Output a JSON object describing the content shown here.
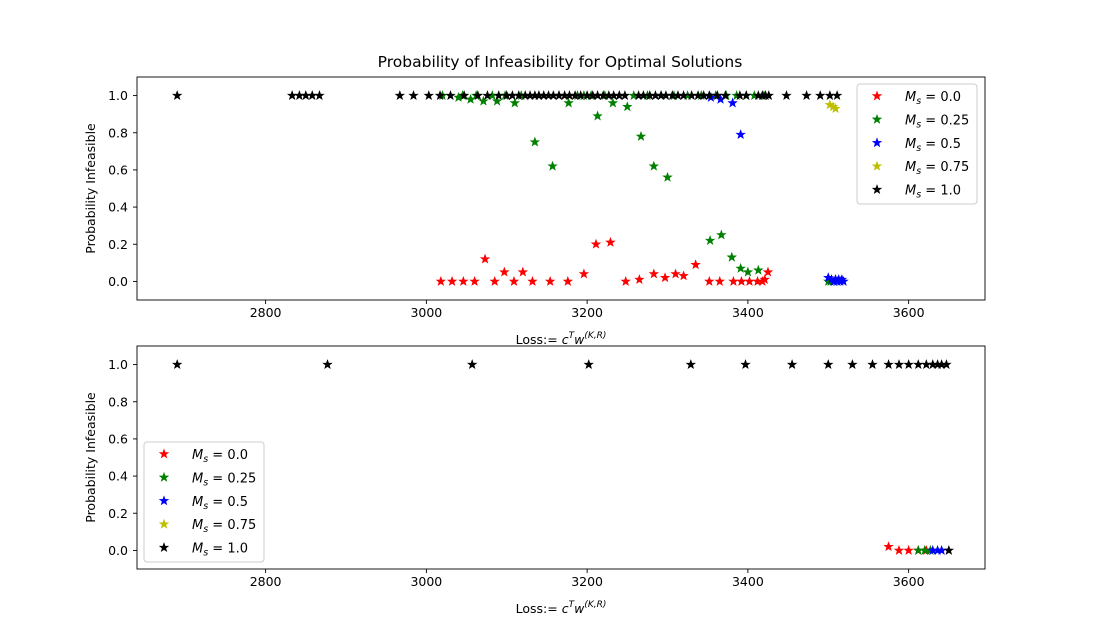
{
  "title": "Probability of Infeasibility for Optimal Solutions",
  "chart_data": [
    {
      "type": "scatter",
      "marker": "star",
      "xlabel_prefix": "Loss:= ",
      "xlabel_math": "c^T w^(K,R)",
      "ylabel": "Probability Infeasible",
      "xlim": [
        2640,
        3695
      ],
      "ylim": [
        -0.1,
        1.1
      ],
      "xticks": [
        2800,
        3000,
        3200,
        3400,
        3600
      ],
      "yticks": [
        0.0,
        0.2,
        0.4,
        0.6,
        0.8,
        1.0
      ],
      "xtick_labels": [
        "2800",
        "3000",
        "3200",
        "3400",
        "3600"
      ],
      "ytick_labels": [
        "0.0",
        "0.2",
        "0.4",
        "0.6",
        "0.8",
        "1.0"
      ],
      "legend_position": "upper right",
      "series": [
        {
          "name": "M_s = 0.0",
          "symbol": "M",
          "sub": "s",
          "value": "0.0",
          "color": "#ff0000",
          "x": [
            3018,
            3032,
            3046,
            3060,
            3073,
            3085,
            3097,
            3109,
            3120,
            3132,
            3154,
            3176,
            3196,
            3211,
            3229,
            3248,
            3265,
            3283,
            3297,
            3310,
            3320,
            3335,
            3352,
            3365,
            3382,
            3392,
            3402,
            3412,
            3418,
            3421,
            3425
          ],
          "y": [
            0.0,
            0.0,
            0.0,
            0.0,
            0.12,
            0.0,
            0.05,
            0.0,
            0.05,
            0.0,
            0.0,
            0.0,
            0.04,
            0.2,
            0.21,
            0.0,
            0.01,
            0.04,
            0.02,
            0.04,
            0.03,
            0.09,
            0.0,
            0.0,
            0.0,
            0.0,
            0.0,
            0.0,
            0.0,
            0.01,
            0.05
          ]
        },
        {
          "name": "M_s = 0.25",
          "symbol": "M",
          "sub": "s",
          "value": "0.25",
          "color": "#008000",
          "x": [
            3040,
            3055,
            3071,
            3088,
            3110,
            3135,
            3157,
            3177,
            3196,
            3213,
            3232,
            3250,
            3267,
            3283,
            3300,
            3353,
            3367,
            3380,
            3391,
            3400,
            3413,
            3500,
            3503,
            3507
          ],
          "y": [
            0.99,
            0.98,
            0.97,
            0.97,
            0.96,
            0.75,
            0.62,
            0.96,
            1.0,
            0.89,
            0.96,
            0.94,
            0.78,
            0.62,
            0.56,
            0.22,
            0.25,
            0.13,
            0.07,
            0.05,
            0.06,
            0.0,
            0.0,
            0.0
          ],
          "overlap_x": [
            3020,
            3045,
            3062,
            3082,
            3098,
            3118,
            3140,
            3165,
            3188,
            3205,
            3222,
            3240,
            3258,
            3275,
            3292,
            3308,
            3325,
            3342,
            3360,
            3373,
            3386,
            3398,
            3408,
            3420
          ],
          "overlap_y": [
            1.0,
            1.0,
            1.0,
            1.0,
            1.0,
            1.0,
            1.0,
            1.0,
            1.0,
            1.0,
            1.0,
            1.0,
            1.0,
            1.0,
            1.0,
            1.0,
            1.0,
            1.0,
            1.0,
            1.0,
            1.0,
            1.0,
            1.0,
            1.0
          ]
        },
        {
          "name": "M_s = 0.5",
          "symbol": "M",
          "sub": "s",
          "value": "0.5",
          "color": "#0000ff",
          "x": [
            3354,
            3366,
            3381,
            3391,
            3500,
            3504,
            3507,
            3509,
            3511,
            3513,
            3515,
            3517,
            3519
          ],
          "y": [
            0.99,
            0.98,
            0.96,
            0.79,
            0.02,
            0.01,
            0.0,
            0.01,
            0.0,
            0.01,
            0.0,
            0.01,
            0.0
          ]
        },
        {
          "name": "M_s = 0.75",
          "symbol": "M",
          "sub": "s",
          "value": "0.75",
          "color": "#bfbf00",
          "x": [
            3502,
            3506,
            3509
          ],
          "y": [
            0.95,
            0.94,
            0.93
          ]
        },
        {
          "name": "M_s = 1.0",
          "symbol": "M",
          "sub": "s",
          "value": "1.0",
          "color": "#000000",
          "x": [
            2690,
            2833,
            2842,
            2850,
            2858,
            2867,
            2967,
            2984,
            3003,
            3017,
            3030,
            3047,
            3064,
            3076,
            3090,
            3100,
            3107,
            3115,
            3123,
            3129,
            3135,
            3140,
            3146,
            3152,
            3158,
            3165,
            3172,
            3178,
            3185,
            3192,
            3200,
            3207,
            3213,
            3220,
            3227,
            3233,
            3240,
            3247,
            3264,
            3270,
            3278,
            3285,
            3292,
            3298,
            3306,
            3313,
            3320,
            3330,
            3338,
            3345,
            3352,
            3362,
            3372,
            3390,
            3398,
            3413,
            3418,
            3422,
            3426,
            3448,
            3473,
            3490,
            3502,
            3511
          ],
          "y": [
            1.0,
            1.0,
            1.0,
            1.0,
            1.0,
            1.0,
            1.0,
            1.0,
            1.0,
            1.0,
            1.0,
            1.0,
            1.0,
            1.0,
            1.0,
            1.0,
            1.0,
            1.0,
            1.0,
            1.0,
            1.0,
            1.0,
            1.0,
            1.0,
            1.0,
            1.0,
            1.0,
            1.0,
            1.0,
            1.0,
            1.0,
            1.0,
            1.0,
            1.0,
            1.0,
            1.0,
            1.0,
            1.0,
            1.0,
            1.0,
            1.0,
            1.0,
            1.0,
            1.0,
            1.0,
            1.0,
            1.0,
            1.0,
            1.0,
            1.0,
            1.0,
            1.0,
            1.0,
            1.0,
            1.0,
            1.0,
            1.0,
            1.0,
            1.0,
            1.0,
            1.0,
            1.0,
            1.0,
            1.0
          ]
        }
      ]
    },
    {
      "type": "scatter",
      "marker": "star",
      "xlabel_prefix": "Loss:= ",
      "xlabel_math": "c^T w^(K,R)",
      "ylabel": "Probability Infeasible",
      "xlim": [
        2640,
        3695
      ],
      "ylim": [
        -0.1,
        1.1
      ],
      "xticks": [
        2800,
        3000,
        3200,
        3400,
        3600
      ],
      "yticks": [
        0.0,
        0.2,
        0.4,
        0.6,
        0.8,
        1.0
      ],
      "xtick_labels": [
        "2800",
        "3000",
        "3200",
        "3400",
        "3600"
      ],
      "ytick_labels": [
        "0.0",
        "0.2",
        "0.4",
        "0.6",
        "0.8",
        "1.0"
      ],
      "legend_position": "lower left",
      "series": [
        {
          "name": "M_s = 0.0",
          "symbol": "M",
          "sub": "s",
          "value": "0.0",
          "color": "#ff0000",
          "x": [
            3575,
            3588,
            3600,
            3612,
            3622
          ],
          "y": [
            0.02,
            0.0,
            0.0,
            0.0,
            0.0
          ]
        },
        {
          "name": "M_s = 0.25",
          "symbol": "M",
          "sub": "s",
          "value": "0.25",
          "color": "#008000",
          "x": [
            3612,
            3620,
            3627
          ],
          "y": [
            0.0,
            0.0,
            0.0
          ]
        },
        {
          "name": "M_s = 0.5",
          "symbol": "M",
          "sub": "s",
          "value": "0.5",
          "color": "#0000ff",
          "x": [
            3630,
            3636,
            3641
          ],
          "y": [
            0.0,
            0.0,
            0.0
          ]
        },
        {
          "name": "M_s = 0.75",
          "symbol": "M",
          "sub": "s",
          "value": "0.75",
          "color": "#bfbf00",
          "x": [],
          "y": []
        },
        {
          "name": "M_s = 1.0",
          "symbol": "M",
          "sub": "s",
          "value": "1.0",
          "color": "#000000",
          "x": [
            2690,
            2877,
            3057,
            3202,
            3329,
            3397,
            3455,
            3500,
            3530,
            3555,
            3575,
            3588,
            3600,
            3612,
            3622,
            3630,
            3636,
            3641,
            3647,
            3650
          ],
          "y": [
            1.0,
            1.0,
            1.0,
            1.0,
            1.0,
            1.0,
            1.0,
            1.0,
            1.0,
            1.0,
            1.0,
            1.0,
            1.0,
            1.0,
            1.0,
            1.0,
            1.0,
            1.0,
            1.0,
            0.0
          ]
        }
      ]
    }
  ]
}
